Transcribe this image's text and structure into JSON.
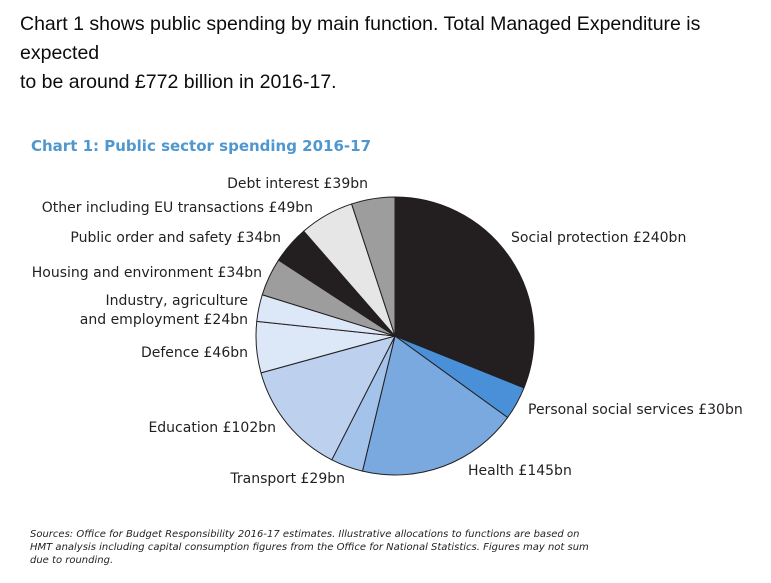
{
  "intro": {
    "line1": "Chart 1 shows public spending by main function. Total Managed Expenditure is expected",
    "line2": "to be around £772 billion in 2016-17."
  },
  "chart_data": {
    "type": "pie",
    "title": "Chart 1: Public sector spending 2016-17",
    "unit": "£bn",
    "start_angle_deg": 0,
    "direction": "clockwise",
    "slices": [
      {
        "name": "Social protection",
        "label": "Social protection £240bn",
        "value": 240,
        "color": "#231f20"
      },
      {
        "name": "Personal social services",
        "label": "Personal social services £30bn",
        "value": 30,
        "color": "#4a90d9"
      },
      {
        "name": "Health",
        "label": "Health £145bn",
        "value": 145,
        "color": "#7aa9e0"
      },
      {
        "name": "Transport",
        "label": "Transport £29bn",
        "value": 29,
        "color": "#a3c3ea"
      },
      {
        "name": "Education",
        "label": "Education £102bn",
        "value": 102,
        "color": "#bdd1ee"
      },
      {
        "name": "Defence",
        "label": "Defence £46bn",
        "value": 46,
        "color": "#dce7f7"
      },
      {
        "name": "Industry, agriculture and employment",
        "label_lines": [
          "Industry, agriculture",
          "and employment £24bn"
        ],
        "value": 24,
        "color": "#dce7f7"
      },
      {
        "name": "Housing and environment",
        "label": "Housing and environment £34bn",
        "value": 34,
        "color": "#9d9d9d"
      },
      {
        "name": "Public order and safety",
        "label": "Public order and safety £34bn",
        "value": 34,
        "color": "#231f20"
      },
      {
        "name": "Other including EU transactions",
        "label": "Other including EU transactions £49bn",
        "value": 49,
        "color": "#e6e6e6"
      },
      {
        "name": "Debt interest",
        "label": "Debt interest £39bn",
        "value": 39,
        "color": "#9d9d9d"
      }
    ]
  },
  "sources": "Sources: Office for Budget Responsibility 2016-17 estimates. Illustrative allocations to functions are based on HMT analysis including capital consumption figures from the Office for National Statistics. Figures may not sum due to rounding."
}
